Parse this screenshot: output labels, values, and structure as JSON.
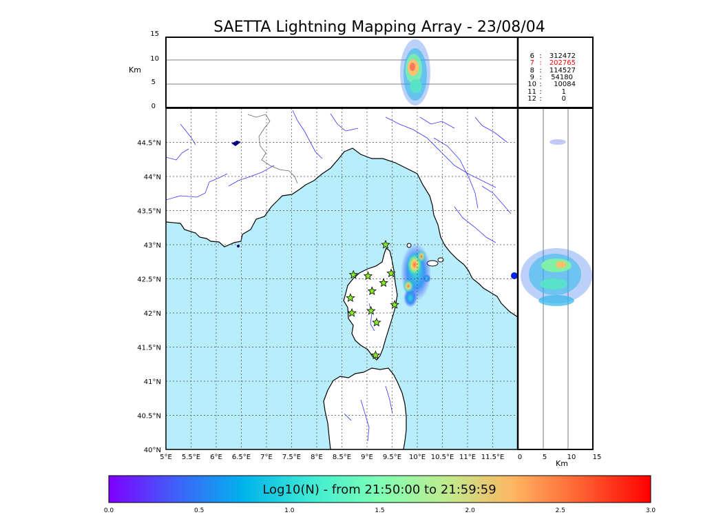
{
  "title": "SAETTA Lightning Mapping Array - 23/08/04",
  "alt_panel": {
    "unit_label": "Km",
    "ticks": [
      "0",
      "5",
      "10",
      "15"
    ]
  },
  "side_panel": {
    "unit_label": "Km",
    "ticks": [
      "0",
      "5",
      "10",
      "15"
    ]
  },
  "station_counts": [
    {
      "stations": "6",
      "count": "312472",
      "color": "#000000"
    },
    {
      "stations": "7",
      "count": "202765",
      "color": "#ff0000"
    },
    {
      "stations": "8",
      "count": "114527",
      "color": "#000000"
    },
    {
      "stations": "9",
      "count": "54180",
      "color": "#000000"
    },
    {
      "stations": "10",
      "count": "10084",
      "color": "#000000"
    },
    {
      "stations": "11",
      "count": "1",
      "color": "#000000"
    },
    {
      "stations": "12",
      "count": "0",
      "color": "#000000"
    }
  ],
  "map": {
    "lon_labels": [
      "5°E",
      "5.5°E",
      "6°E",
      "6.5°E",
      "7°E",
      "7.5°E",
      "8°E",
      "8.5°E",
      "9°E",
      "9.5°E",
      "10°E",
      "10.5°E",
      "11°E",
      "11.5°E"
    ],
    "lat_labels": [
      "40°N",
      "40.5°N",
      "41°N",
      "41.5°N",
      "42°N",
      "42.5°N",
      "43°N",
      "43.5°N",
      "44°N",
      "44.5°N"
    ],
    "lon_range": [
      5,
      12
    ],
    "lat_range": [
      40,
      45
    ],
    "sea_color": "#b8eefb",
    "land_color": "#ffffff",
    "river_color": "#3333ff",
    "station_color": "#88ee22",
    "stations": [
      {
        "lon": 9.37,
        "lat": 43.0
      },
      {
        "lon": 8.73,
        "lat": 42.56
      },
      {
        "lon": 9.02,
        "lat": 42.54
      },
      {
        "lon": 9.48,
        "lat": 42.58
      },
      {
        "lon": 9.33,
        "lat": 42.44
      },
      {
        "lon": 9.1,
        "lat": 42.32
      },
      {
        "lon": 8.67,
        "lat": 42.22
      },
      {
        "lon": 9.55,
        "lat": 42.12
      },
      {
        "lon": 8.7,
        "lat": 42.0
      },
      {
        "lon": 9.08,
        "lat": 42.03
      },
      {
        "lon": 9.19,
        "lat": 41.86
      },
      {
        "lon": 9.17,
        "lat": 41.38
      }
    ]
  },
  "colorbar": {
    "label": "Log10(N) - from 21:50:00 to 21:59:59",
    "ticks": [
      "0.0",
      "0.5",
      "1.0",
      "1.5",
      "2.0",
      "2.5",
      "3.0"
    ],
    "range": [
      0,
      3
    ],
    "colors": [
      "#7f00ff",
      "#3f61fa",
      "#00b4eb",
      "#40ecd4",
      "#80ffb4",
      "#c0eb8d",
      "#ffb360",
      "#ff5e31",
      "#ff0000"
    ]
  }
}
